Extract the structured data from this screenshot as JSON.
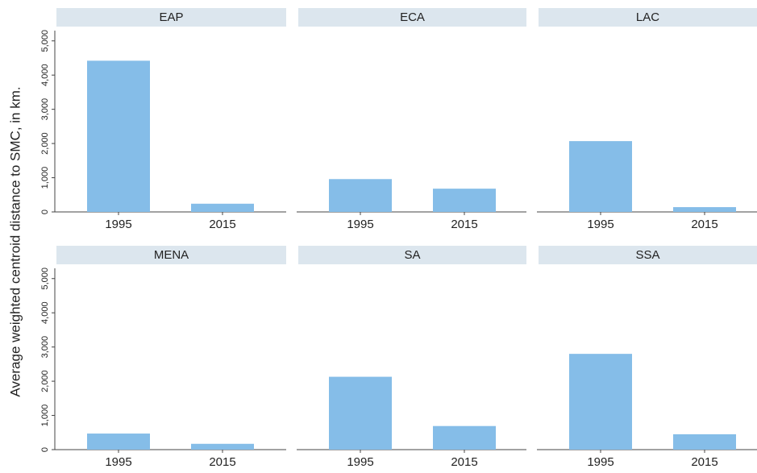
{
  "y_label": "Average weighted centroid distance to SMC, in km.",
  "chart_data": [
    {
      "type": "bar",
      "title": "EAP",
      "categories": [
        "1995",
        "2015"
      ],
      "values": [
        4420,
        240
      ],
      "color": "#85bde8",
      "ylim": [
        0,
        5300
      ],
      "yticks": [
        0,
        {
          "value": 1000,
          "label": "1,000"
        },
        {
          "value": 2000,
          "label": "2,000"
        },
        {
          "value": 3000,
          "label": "3,000"
        },
        {
          "value": 4000,
          "label": "4,000"
        },
        {
          "value": 5000,
          "label": "5,000"
        }
      ]
    },
    {
      "type": "bar",
      "title": "ECA",
      "categories": [
        "1995",
        "2015"
      ],
      "values": [
        960,
        680
      ],
      "color": "#85bde8",
      "ylim": [
        0,
        5300
      ]
    },
    {
      "type": "bar",
      "title": "LAC",
      "categories": [
        "1995",
        "2015"
      ],
      "values": [
        2070,
        140
      ],
      "color": "#85bde8",
      "ylim": [
        0,
        5300
      ]
    },
    {
      "type": "bar",
      "title": "MENA",
      "categories": [
        "1995",
        "2015"
      ],
      "values": [
        470,
        170
      ],
      "color": "#85bde8",
      "ylim": [
        0,
        5300
      ],
      "yticks": [
        0,
        {
          "value": 1000,
          "label": "1,000"
        },
        {
          "value": 2000,
          "label": "2,000"
        },
        {
          "value": 3000,
          "label": "3,000"
        },
        {
          "value": 4000,
          "label": "4,000"
        },
        {
          "value": 5000,
          "label": "5,000"
        }
      ]
    },
    {
      "type": "bar",
      "title": "SA",
      "categories": [
        "1995",
        "2015"
      ],
      "values": [
        2130,
        690
      ],
      "color": "#85bde8",
      "ylim": [
        0,
        5300
      ]
    },
    {
      "type": "bar",
      "title": "SSA",
      "categories": [
        "1995",
        "2015"
      ],
      "values": [
        2800,
        450
      ],
      "color": "#85bde8",
      "ylim": [
        0,
        5300
      ]
    }
  ]
}
